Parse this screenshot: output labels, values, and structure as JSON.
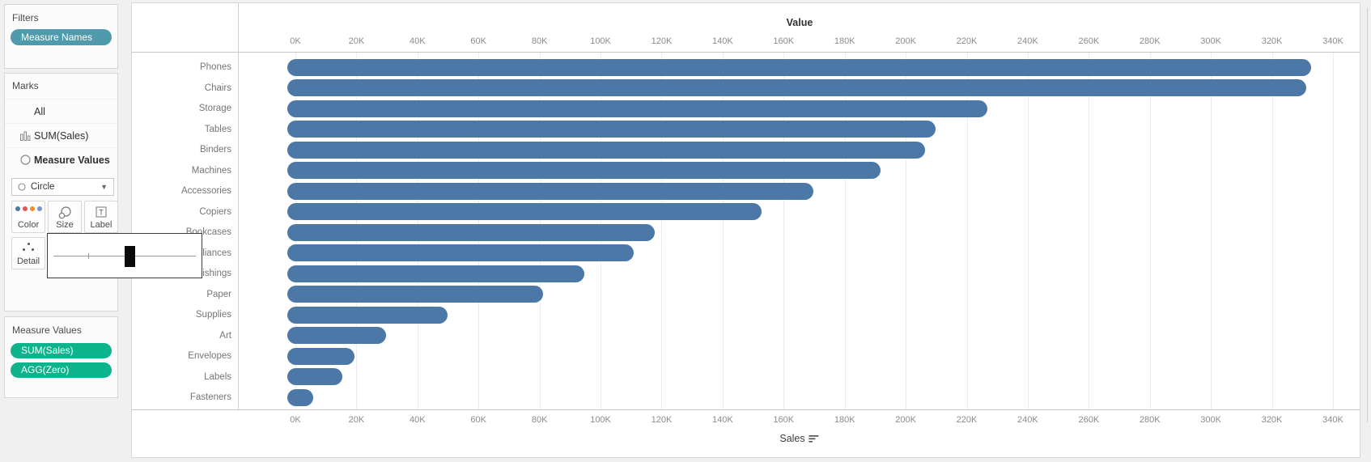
{
  "colors": {
    "pill_teal": "#4f9bab",
    "pill_green": "#0db48b",
    "bar_blue": "#4c78a8",
    "dot_blue": "#4e79a7",
    "dot_red": "#e15759",
    "dot_orange": "#f28e2b",
    "dot_periwinkle": "#7b93c8"
  },
  "filters_panel": {
    "title": "Filters",
    "pills": [
      {
        "label": "Measure Names"
      }
    ]
  },
  "marks_panel": {
    "title": "Marks",
    "cards": [
      {
        "label": "All"
      },
      {
        "label": "SUM(Sales)"
      },
      {
        "label": "Measure Values"
      }
    ],
    "mark_type": {
      "value": "Circle"
    },
    "buttons": [
      {
        "label": "Color"
      },
      {
        "label": "Size"
      },
      {
        "label": "Label"
      },
      {
        "label": "Detail"
      }
    ],
    "size_slider": {
      "handle_pct": 53,
      "tick_pct": 24
    }
  },
  "measure_values_panel": {
    "title": "Measure Values",
    "pills": [
      {
        "label": "SUM(Sales)"
      },
      {
        "label": "AGG(Zero)"
      }
    ]
  },
  "chart_data": {
    "type": "bar",
    "orientation": "horizontal",
    "mark_style": "rounded-capsule",
    "title": "Value",
    "xlabel": "Sales",
    "sort": "descending",
    "legend_position": "none",
    "grid": true,
    "xlim_k": [
      0,
      348
    ],
    "axis_ticks": [
      "0K",
      "20K",
      "40K",
      "60K",
      "80K",
      "100K",
      "120K",
      "140K",
      "160K",
      "180K",
      "200K",
      "220K",
      "240K",
      "260K",
      "280K",
      "300K",
      "320K",
      "340K"
    ],
    "categories": [
      "Phones",
      "Chairs",
      "Storage",
      "Tables",
      "Binders",
      "Machines",
      "Accessories",
      "Copiers",
      "Bookcases",
      "Appliances",
      "Furnishings",
      "Paper",
      "Supplies",
      "Art",
      "Envelopes",
      "Labels",
      "Fasteners"
    ],
    "values_k": [
      330,
      328.5,
      224,
      207,
      203.5,
      189,
      167,
      150,
      115,
      108,
      92,
      78.5,
      47,
      27,
      16.5,
      12.5,
      3
    ],
    "bar_color": "#4c78a8"
  }
}
